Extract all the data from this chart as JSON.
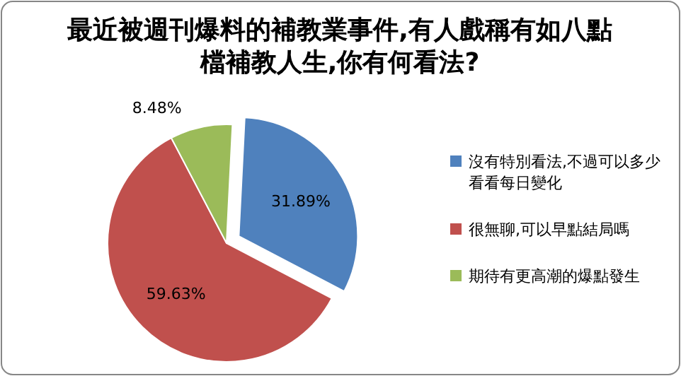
{
  "chart_data": {
    "type": "pie",
    "title": "最近被週刊爆料的補教業事件,有人戲稱有如八點檔補教人生,你有何看法?",
    "categories": [
      "沒有特別看法,不過可以多少看看每日變化",
      "很無聊,可以早點結局嗎",
      "期待有更高潮的爆點發生"
    ],
    "values": [
      31.89,
      59.63,
      8.48
    ],
    "value_labels": [
      "31.89%",
      "59.63%",
      "8.48%"
    ],
    "colors": [
      "#4f81bd",
      "#c0504d",
      "#9bbb59"
    ],
    "legend": "right"
  }
}
